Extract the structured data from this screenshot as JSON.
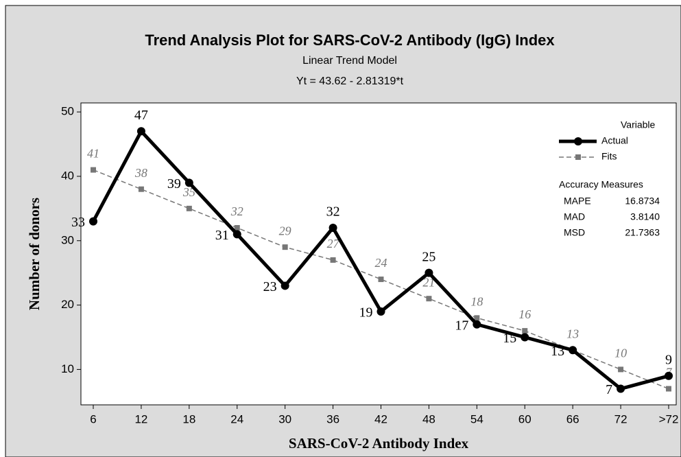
{
  "chart_data": {
    "type": "line",
    "title": "Trend Analysis Plot for SARS-CoV-2 Antibody (IgG) Index",
    "subtitle": "Linear Trend Model",
    "equation": "Yt = 43.62 - 2.81319*t",
    "x_label": "SARS-CoV-2 Antibody Index",
    "y_label": "Number of donors",
    "categories": [
      "6",
      "12",
      "18",
      "24",
      "30",
      "36",
      "42",
      "48",
      "54",
      "60",
      "66",
      "72",
      ">72"
    ],
    "series": [
      {
        "name": "Actual",
        "color": "#000000",
        "marker": "circle",
        "dashed": false,
        "values": [
          33,
          47,
          39,
          31,
          23,
          32,
          19,
          25,
          17,
          15,
          13,
          7,
          9
        ]
      },
      {
        "name": "Fits",
        "color": "#777777",
        "marker": "square",
        "dashed": true,
        "values": [
          41,
          38,
          35,
          32,
          29,
          27,
          24,
          21,
          18,
          16,
          13,
          10,
          7
        ]
      }
    ],
    "legend_title": "Variable",
    "accuracy": {
      "title": "Accuracy Measures",
      "rows": [
        [
          "MAPE",
          "16.8734"
        ],
        [
          "MAD",
          "3.8140"
        ],
        [
          "MSD",
          "21.7363"
        ]
      ]
    },
    "ylim": [
      4.5,
      51.4
    ],
    "yticks": [
      10,
      20,
      30,
      40,
      50
    ],
    "grid": false,
    "legend": "top-right"
  }
}
